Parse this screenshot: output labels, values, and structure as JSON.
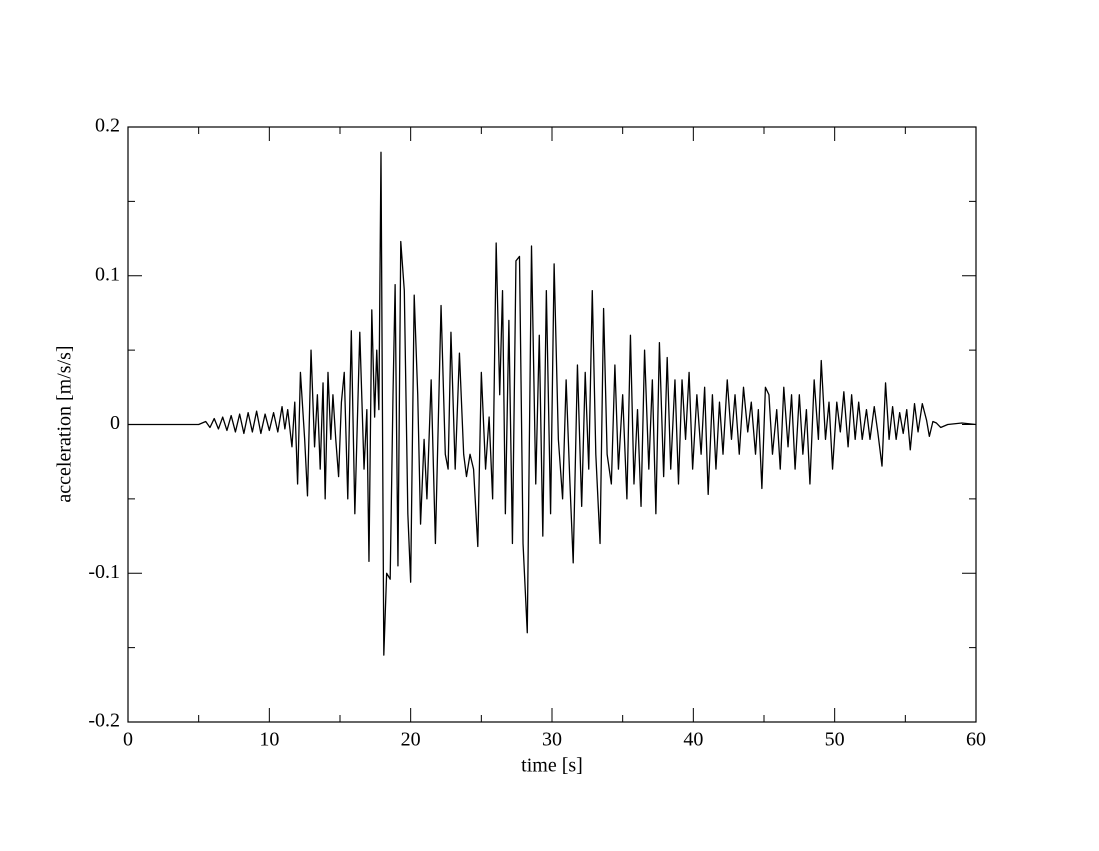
{
  "chart_data": {
    "type": "line",
    "xlabel": "time [s]",
    "ylabel": "acceleration [m/s/s]",
    "xlim": [
      0,
      60
    ],
    "ylim": [
      -0.2,
      0.2
    ],
    "xticks": [
      0,
      10,
      20,
      30,
      40,
      50,
      60
    ],
    "yticks": [
      -0.2,
      -0.1,
      0,
      0.1,
      0.2
    ],
    "xminorticks": [
      5,
      15,
      25,
      35,
      45,
      55
    ],
    "yminorticks": [
      -0.15,
      -0.05,
      0.05,
      0.15
    ],
    "grid": false,
    "series": [
      {
        "color": "#000000",
        "x": [
          0,
          5,
          5.5,
          5.8,
          6.1,
          6.4,
          6.7,
          7.0,
          7.3,
          7.6,
          7.9,
          8.2,
          8.5,
          8.8,
          9.1,
          9.4,
          9.7,
          10.0,
          10.3,
          10.6,
          10.9,
          11.1,
          11.3,
          11.6,
          11.8,
          12.0,
          12.2,
          12.5,
          12.7,
          12.95,
          13.2,
          13.4,
          13.6,
          13.8,
          13.95,
          14.15,
          14.35,
          14.5,
          14.7,
          14.9,
          15.1,
          15.3,
          15.55,
          15.8,
          16.05,
          16.4,
          16.7,
          16.9,
          17.05,
          17.25,
          17.45,
          17.6,
          17.75,
          17.9,
          18.1,
          18.3,
          18.55,
          18.75,
          18.9,
          19.1,
          19.3,
          19.55,
          19.8,
          20.0,
          20.25,
          20.5,
          20.7,
          20.95,
          21.15,
          21.45,
          21.75,
          22.15,
          22.45,
          22.65,
          22.85,
          23.15,
          23.45,
          23.75,
          23.95,
          24.2,
          24.45,
          24.75,
          25.0,
          25.3,
          25.55,
          25.8,
          26.05,
          26.3,
          26.5,
          26.7,
          26.95,
          27.2,
          27.45,
          27.7,
          27.95,
          28.25,
          28.55,
          28.85,
          29.1,
          29.35,
          29.6,
          29.9,
          30.15,
          30.45,
          30.75,
          31.0,
          31.25,
          31.5,
          31.8,
          32.1,
          32.35,
          32.6,
          32.85,
          33.1,
          33.4,
          33.65,
          33.9,
          34.2,
          34.45,
          34.7,
          35.0,
          35.3,
          35.55,
          35.8,
          36.05,
          36.3,
          36.55,
          36.85,
          37.1,
          37.35,
          37.6,
          37.9,
          38.15,
          38.4,
          38.7,
          38.95,
          39.2,
          39.45,
          39.7,
          39.95,
          40.25,
          40.55,
          40.8,
          41.05,
          41.35,
          41.6,
          41.85,
          42.1,
          42.4,
          42.7,
          42.95,
          43.25,
          43.55,
          43.85,
          44.1,
          44.4,
          44.6,
          44.85,
          45.1,
          45.35,
          45.6,
          45.9,
          46.15,
          46.4,
          46.7,
          46.95,
          47.2,
          47.5,
          47.75,
          48.0,
          48.25,
          48.55,
          48.85,
          49.05,
          49.35,
          49.6,
          49.85,
          50.15,
          50.4,
          50.65,
          50.95,
          51.2,
          51.45,
          51.7,
          51.95,
          52.25,
          52.5,
          52.8,
          53.05,
          53.35,
          53.6,
          53.85,
          54.1,
          54.35,
          54.6,
          54.85,
          55.1,
          55.35,
          55.65,
          55.9,
          56.2,
          56.5,
          56.7,
          56.95,
          57.2,
          57.5,
          58.0,
          59,
          60
        ],
        "values": [
          0,
          0,
          0.002,
          -0.002,
          0.004,
          -0.003,
          0.005,
          -0.004,
          0.006,
          -0.005,
          0.007,
          -0.006,
          0.008,
          -0.005,
          0.009,
          -0.006,
          0.007,
          -0.004,
          0.008,
          -0.005,
          0.012,
          -0.003,
          0.01,
          -0.015,
          0.015,
          -0.04,
          0.035,
          -0.01,
          -0.048,
          0.05,
          -0.015,
          0.02,
          -0.03,
          0.028,
          -0.05,
          0.035,
          -0.01,
          0.02,
          -0.01,
          -0.035,
          0.015,
          0.035,
          -0.05,
          0.063,
          -0.06,
          0.062,
          -0.03,
          0.01,
          -0.092,
          0.077,
          0.005,
          0.05,
          0.01,
          0.183,
          -0.155,
          -0.1,
          -0.104,
          0.02,
          0.094,
          -0.095,
          0.123,
          0.09,
          -0.06,
          -0.106,
          0.087,
          0.02,
          -0.067,
          -0.01,
          -0.05,
          0.03,
          -0.08,
          0.08,
          -0.02,
          -0.03,
          0.062,
          -0.03,
          0.048,
          -0.02,
          -0.035,
          -0.02,
          -0.03,
          -0.082,
          0.035,
          -0.03,
          0.005,
          -0.05,
          0.122,
          0.02,
          0.09,
          -0.06,
          0.07,
          -0.08,
          0.11,
          0.113,
          -0.08,
          -0.14,
          0.12,
          -0.04,
          0.06,
          -0.075,
          0.09,
          -0.06,
          0.108,
          -0.01,
          -0.05,
          0.03,
          -0.035,
          -0.093,
          0.04,
          -0.055,
          0.035,
          -0.03,
          0.09,
          -0.02,
          -0.08,
          0.078,
          -0.02,
          -0.04,
          0.04,
          -0.03,
          0.02,
          -0.05,
          0.06,
          -0.04,
          0.01,
          -0.055,
          0.05,
          -0.03,
          0.03,
          -0.06,
          0.055,
          -0.035,
          0.045,
          -0.03,
          0.03,
          -0.04,
          0.03,
          -0.01,
          0.035,
          -0.03,
          0.02,
          -0.02,
          0.025,
          -0.047,
          0.02,
          -0.03,
          0.015,
          -0.02,
          0.03,
          -0.01,
          0.02,
          -0.02,
          0.025,
          -0.005,
          0.015,
          -0.02,
          0.01,
          -0.043,
          0.025,
          0.02,
          -0.02,
          0.01,
          -0.03,
          0.025,
          -0.015,
          0.02,
          -0.03,
          0.02,
          -0.02,
          0.01,
          -0.04,
          0.03,
          -0.01,
          0.043,
          -0.01,
          0.015,
          -0.03,
          0.015,
          -0.005,
          0.022,
          -0.015,
          0.02,
          -0.01,
          0.015,
          -0.01,
          0.01,
          -0.01,
          0.012,
          -0.005,
          -0.028,
          0.028,
          -0.01,
          0.012,
          -0.01,
          0.008,
          -0.006,
          0.01,
          -0.017,
          0.014,
          -0.005,
          0.014,
          0.003,
          -0.008,
          0.002,
          0.001,
          -0.002,
          0,
          0.001,
          0
        ]
      }
    ]
  }
}
